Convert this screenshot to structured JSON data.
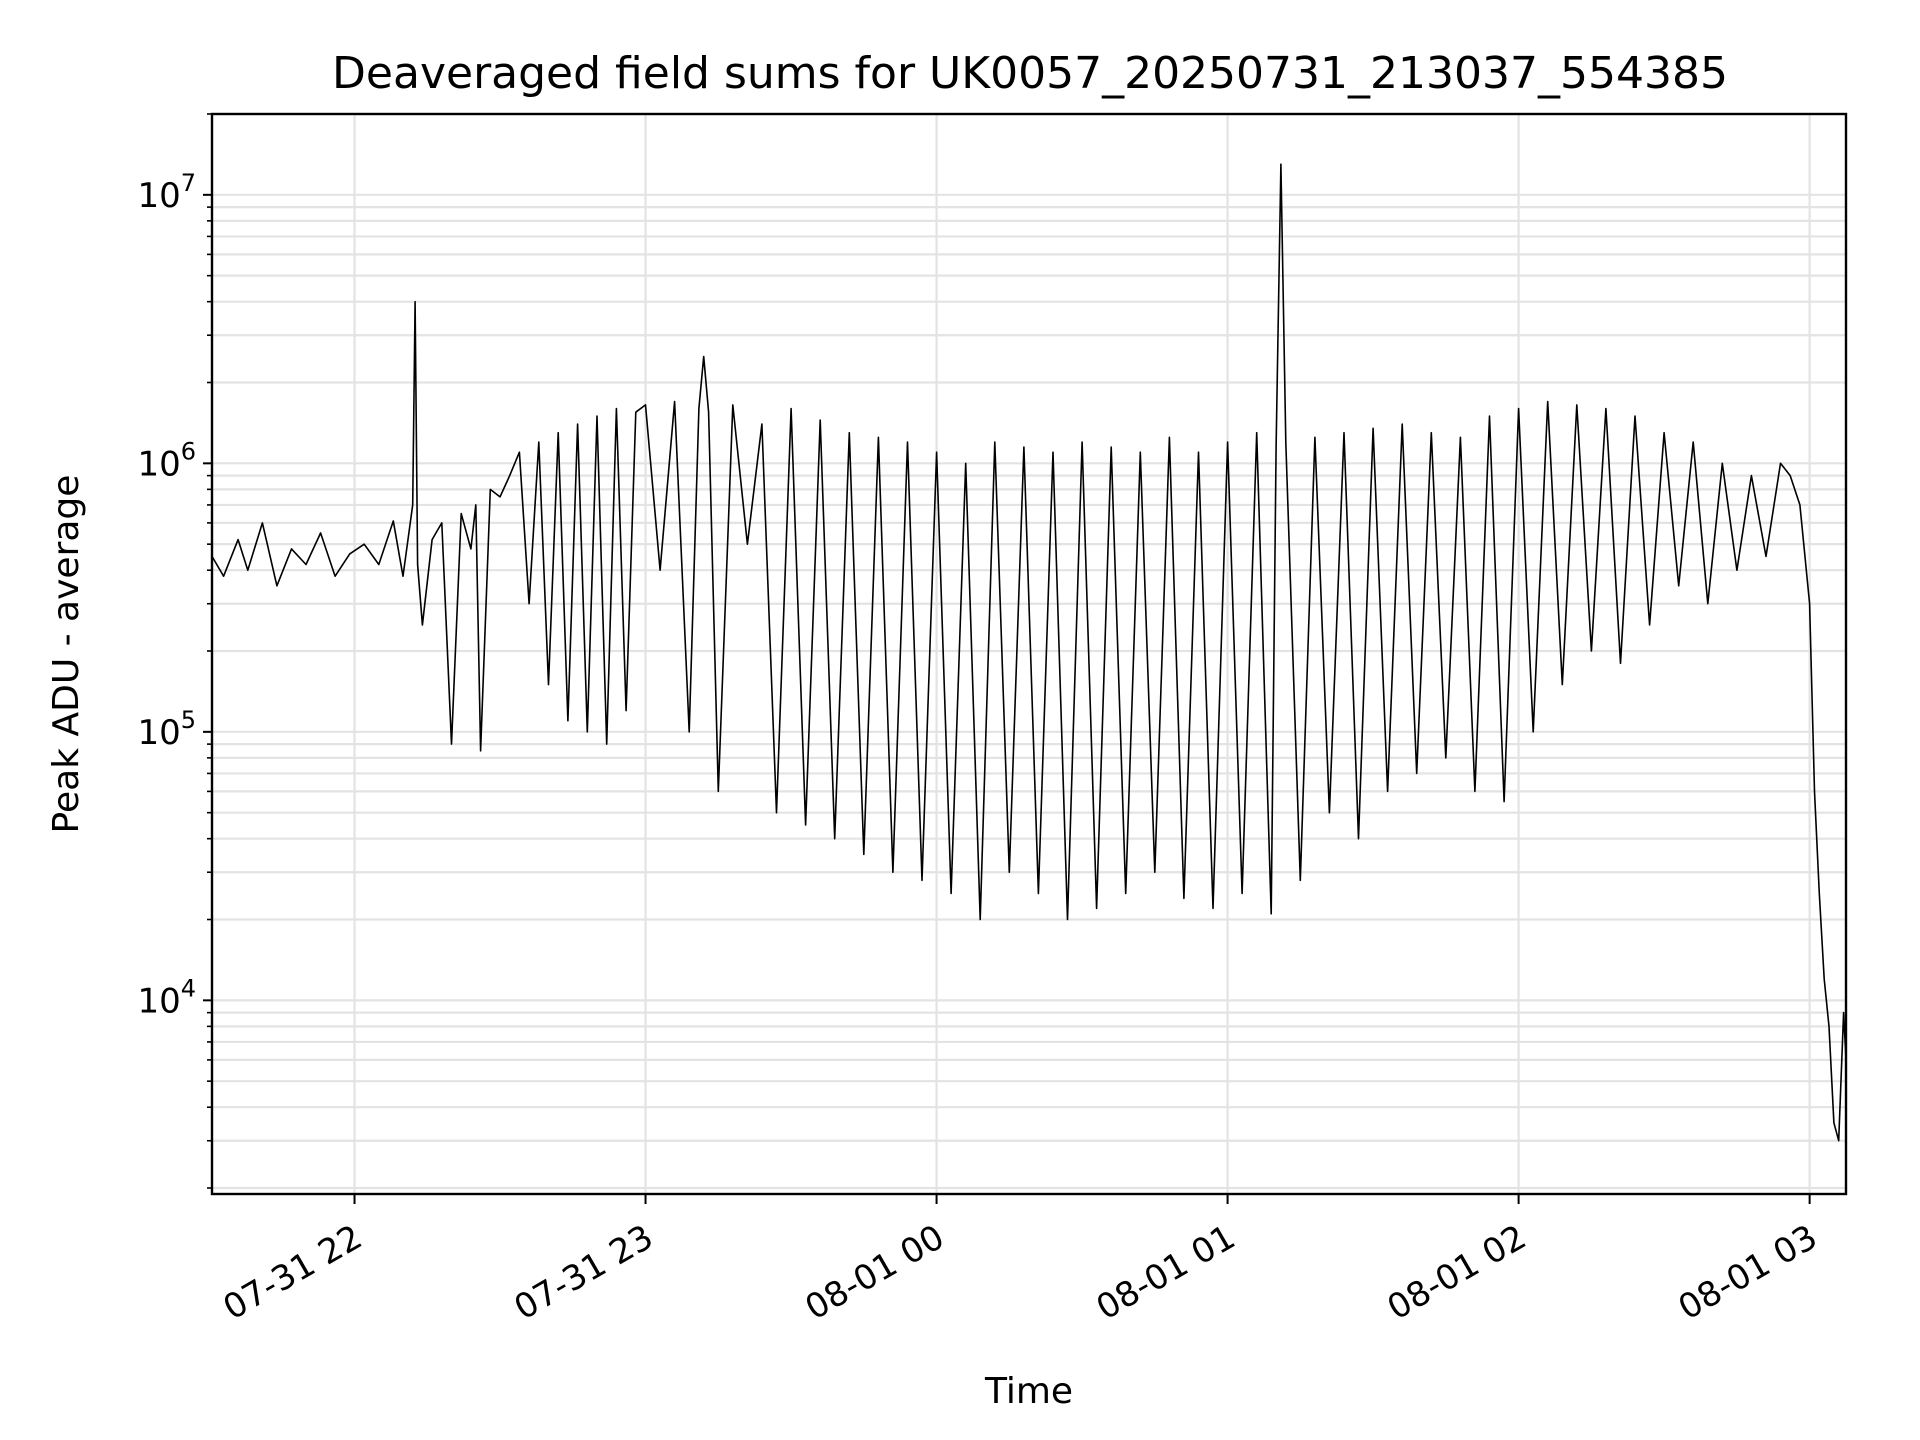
{
  "chart_data": {
    "type": "line",
    "title": "Deaveraged field sums for UK0057_20250731_213037_554385",
    "xlabel": "Time",
    "ylabel": "Peak ADU - average",
    "yscale": "log",
    "ylim": [
      1900,
      20000000
    ],
    "xlim": [
      "2025-07-31 21:30:37",
      "2025-08-01 03:07:30"
    ],
    "grid": true,
    "line_color": "#000000",
    "grid_color": "#e3e3e3",
    "x_ticks": [
      {
        "value": "2025-07-31 22:00",
        "label": "07-31 22"
      },
      {
        "value": "2025-07-31 23:00",
        "label": "07-31 23"
      },
      {
        "value": "2025-08-01 00:00",
        "label": "08-01 00"
      },
      {
        "value": "2025-08-01 01:00",
        "label": "08-01 01"
      },
      {
        "value": "2025-08-01 02:00",
        "label": "08-01 02"
      },
      {
        "value": "2025-08-01 03:00",
        "label": "08-01 03"
      }
    ],
    "y_ticks": [
      {
        "value": 10000,
        "base": "10",
        "exp": "4"
      },
      {
        "value": 100000,
        "base": "10",
        "exp": "5"
      },
      {
        "value": 1000000,
        "base": "10",
        "exp": "6"
      },
      {
        "value": 10000000,
        "base": "10",
        "exp": "7"
      }
    ],
    "series": [
      {
        "x": [
          "2025-07-31 21:30:37",
          "2025-07-31 21:33",
          "2025-07-31 21:36",
          "2025-07-31 21:38",
          "2025-07-31 21:41",
          "2025-07-31 21:44",
          "2025-07-31 21:47",
          "2025-07-31 21:50",
          "2025-07-31 21:53",
          "2025-07-31 21:56",
          "2025-07-31 21:59",
          "2025-07-31 22:02",
          "2025-07-31 22:05",
          "2025-07-31 22:08",
          "2025-07-31 22:10",
          "2025-07-31 22:12",
          "2025-07-31 22:12:30",
          "2025-07-31 22:13",
          "2025-07-31 22:14",
          "2025-07-31 22:16",
          "2025-07-31 22:18",
          "2025-07-31 22:20",
          "2025-07-31 22:22",
          "2025-07-31 22:24",
          "2025-07-31 22:25",
          "2025-07-31 22:26",
          "2025-07-31 22:28",
          "2025-07-31 22:30",
          "2025-07-31 22:32",
          "2025-07-31 22:34",
          "2025-07-31 22:36",
          "2025-07-31 22:38",
          "2025-07-31 22:40",
          "2025-07-31 22:42",
          "2025-07-31 22:44",
          "2025-07-31 22:46",
          "2025-07-31 22:48",
          "2025-07-31 22:50",
          "2025-07-31 22:52",
          "2025-07-31 22:54",
          "2025-07-31 22:56",
          "2025-07-31 22:58",
          "2025-07-31 23:00",
          "2025-07-31 23:03",
          "2025-07-31 23:06",
          "2025-07-31 23:09",
          "2025-07-31 23:11",
          "2025-07-31 23:12",
          "2025-07-31 23:13",
          "2025-07-31 23:15",
          "2025-07-31 23:18",
          "2025-07-31 23:21",
          "2025-07-31 23:24",
          "2025-07-31 23:27",
          "2025-07-31 23:30",
          "2025-07-31 23:33",
          "2025-07-31 23:36",
          "2025-07-31 23:39",
          "2025-07-31 23:42",
          "2025-07-31 23:45",
          "2025-07-31 23:48",
          "2025-07-31 23:51",
          "2025-07-31 23:54",
          "2025-07-31 23:57",
          "2025-08-01 00:00",
          "2025-08-01 00:03",
          "2025-08-01 00:06",
          "2025-08-01 00:09",
          "2025-08-01 00:12",
          "2025-08-01 00:15",
          "2025-08-01 00:18",
          "2025-08-01 00:21",
          "2025-08-01 00:24",
          "2025-08-01 00:27",
          "2025-08-01 00:30",
          "2025-08-01 00:33",
          "2025-08-01 00:36",
          "2025-08-01 00:39",
          "2025-08-01 00:42",
          "2025-08-01 00:45",
          "2025-08-01 00:48",
          "2025-08-01 00:51",
          "2025-08-01 00:54",
          "2025-08-01 00:57",
          "2025-08-01 01:00",
          "2025-08-01 01:03",
          "2025-08-01 01:06",
          "2025-08-01 01:09",
          "2025-08-01 01:10",
          "2025-08-01 01:11",
          "2025-08-01 01:12",
          "2025-08-01 01:15",
          "2025-08-01 01:18",
          "2025-08-01 01:21",
          "2025-08-01 01:24",
          "2025-08-01 01:27",
          "2025-08-01 01:30",
          "2025-08-01 01:33",
          "2025-08-01 01:36",
          "2025-08-01 01:39",
          "2025-08-01 01:42",
          "2025-08-01 01:45",
          "2025-08-01 01:48",
          "2025-08-01 01:51",
          "2025-08-01 01:54",
          "2025-08-01 01:57",
          "2025-08-01 02:00",
          "2025-08-01 02:03",
          "2025-08-01 02:06",
          "2025-08-01 02:09",
          "2025-08-01 02:12",
          "2025-08-01 02:15",
          "2025-08-01 02:18",
          "2025-08-01 02:21",
          "2025-08-01 02:24",
          "2025-08-01 02:27",
          "2025-08-01 02:30",
          "2025-08-01 02:33",
          "2025-08-01 02:36",
          "2025-08-01 02:39",
          "2025-08-01 02:42",
          "2025-08-01 02:45",
          "2025-08-01 02:48",
          "2025-08-01 02:51",
          "2025-08-01 02:54",
          "2025-08-01 02:56",
          "2025-08-01 02:58",
          "2025-08-01 03:00",
          "2025-08-01 03:01",
          "2025-08-01 03:02",
          "2025-08-01 03:03",
          "2025-08-01 03:04",
          "2025-08-01 03:05",
          "2025-08-01 03:06",
          "2025-08-01 03:07",
          "2025-08-01 03:07:30"
        ],
        "y": [
          450000,
          380000,
          520000,
          400000,
          600000,
          350000,
          480000,
          420000,
          550000,
          380000,
          460000,
          500000,
          420000,
          610000,
          380000,
          700000,
          4000000,
          420000,
          250000,
          520000,
          600000,
          90000,
          650000,
          480000,
          700000,
          85000,
          800000,
          750000,
          900000,
          1100000,
          300000,
          1200000,
          150000,
          1300000,
          110000,
          1400000,
          100000,
          1500000,
          90000,
          1600000,
          120000,
          1550000,
          1650000,
          400000,
          1700000,
          100000,
          1600000,
          2500000,
          1550000,
          60000,
          1650000,
          500000,
          1400000,
          50000,
          1600000,
          45000,
          1450000,
          40000,
          1300000,
          35000,
          1250000,
          30000,
          1200000,
          28000,
          1100000,
          25000,
          1000000,
          20000,
          1200000,
          30000,
          1150000,
          25000,
          1100000,
          20000,
          1200000,
          22000,
          1150000,
          25000,
          1100000,
          30000,
          1250000,
          24000,
          1100000,
          22000,
          1200000,
          25000,
          1300000,
          21000,
          1150000,
          13000000,
          1200000,
          28000,
          1250000,
          50000,
          1300000,
          40000,
          1350000,
          60000,
          1400000,
          70000,
          1300000,
          80000,
          1250000,
          60000,
          1500000,
          55000,
          1600000,
          100000,
          1700000,
          150000,
          1650000,
          200000,
          1600000,
          180000,
          1500000,
          250000,
          1300000,
          350000,
          1200000,
          300000,
          1000000,
          400000,
          900000,
          450000,
          1000000,
          900000,
          700000,
          300000,
          60000,
          25000,
          12000,
          8000,
          3500,
          3000,
          9000,
          6000
        ]
      }
    ]
  }
}
